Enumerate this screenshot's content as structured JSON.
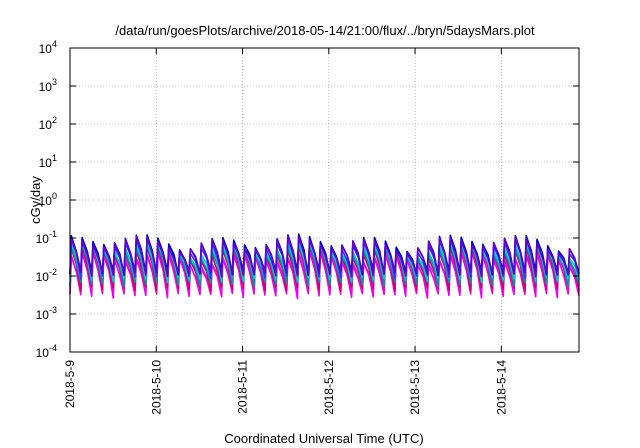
{
  "chart_data": {
    "type": "line",
    "title": "/data/run/goesPlots/archive/2018-05-14/21:00/flux/../bryn/5daysMars.plot",
    "xlabel": "Coordinated Universal Time (UTC)",
    "ylabel": "cGy/day",
    "x_ticks": [
      "2018-5-9",
      "2018-5-10",
      "2018-5-11",
      "2018-5-12",
      "2018-5-13",
      "2018-5-14"
    ],
    "xlim_days": [
      0,
      5.9
    ],
    "yscale": "log",
    "ylim": [
      0.0001,
      10000
    ],
    "y_ticks": [
      {
        "base": "10",
        "exp": "-4",
        "value": 0.0001
      },
      {
        "base": "10",
        "exp": "-3",
        "value": 0.001
      },
      {
        "base": "10",
        "exp": "-2",
        "value": 0.01
      },
      {
        "base": "10",
        "exp": "-1",
        "value": 0.1
      },
      {
        "base": "10",
        "exp": "0",
        "value": 1
      },
      {
        "base": "10",
        "exp": "1",
        "value": 10
      },
      {
        "base": "10",
        "exp": "2",
        "value": 100
      },
      {
        "base": "10",
        "exp": "3",
        "value": 1000
      },
      {
        "base": "10",
        "exp": "4",
        "value": 10000
      }
    ],
    "grid": true,
    "series": [
      {
        "color": "#cc33cc",
        "peak": 0.035,
        "trough": 0.004
      },
      {
        "color": "#ee00ee",
        "peak": 0.03,
        "trough": 0.003
      },
      {
        "color": "#cc0066",
        "peak": 0.045,
        "trough": 0.0045
      },
      {
        "color": "#009999",
        "peak": 0.05,
        "trough": 0.006
      },
      {
        "color": "#00cccc",
        "peak": 0.055,
        "trough": 0.008
      },
      {
        "color": "#3333ff",
        "peak": 0.07,
        "trough": 0.01
      },
      {
        "color": "#0000cc",
        "peak": 0.085,
        "trough": 0.012
      },
      {
        "color": "#6600cc",
        "peak": 0.075,
        "trough": 0.011
      }
    ],
    "cycles_per_day": 8
  }
}
